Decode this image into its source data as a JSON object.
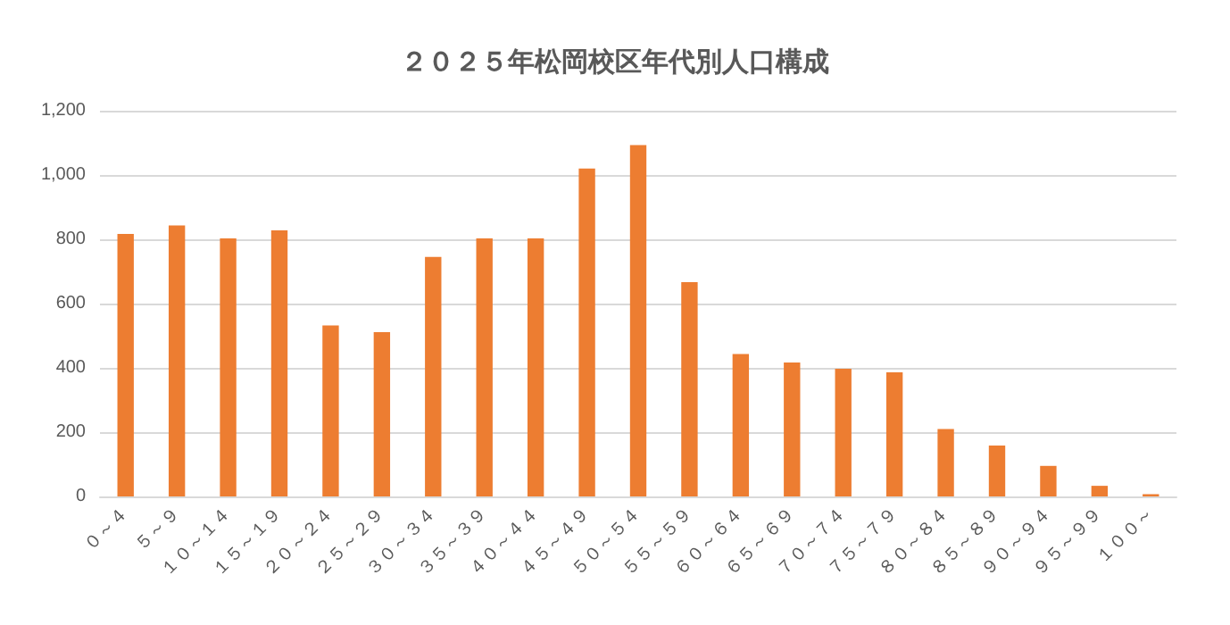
{
  "chart_data": {
    "type": "bar",
    "title": "２０２５年松岡校区年代別人口構成",
    "categories": [
      "０～４",
      "５～９",
      "１０～１４",
      "１５～１９",
      "２０～２４",
      "２５～２９",
      "３０～３４",
      "３５～３９",
      "４０～４４",
      "４５～４９",
      "５０～５４",
      "５５～５９",
      "６０～６４",
      "６５～６９",
      "７０～７４",
      "７５～７９",
      "８０～８４",
      "８５～８９",
      "９０～９４",
      "９５～９９",
      "１００～"
    ],
    "values": [
      817,
      843,
      803,
      828,
      532,
      511,
      745,
      803,
      803,
      1020,
      1093,
      667,
      443,
      417,
      397,
      386,
      210,
      158,
      95,
      33,
      7
    ],
    "color": "#ed7d31",
    "ylim": [
      0,
      1200
    ],
    "yticks": [
      0,
      200,
      400,
      600,
      800,
      {
        "value": 1000,
        "label": "1,000"
      },
      {
        "value": 1200,
        "label": "1,200"
      }
    ],
    "grid": "y"
  }
}
